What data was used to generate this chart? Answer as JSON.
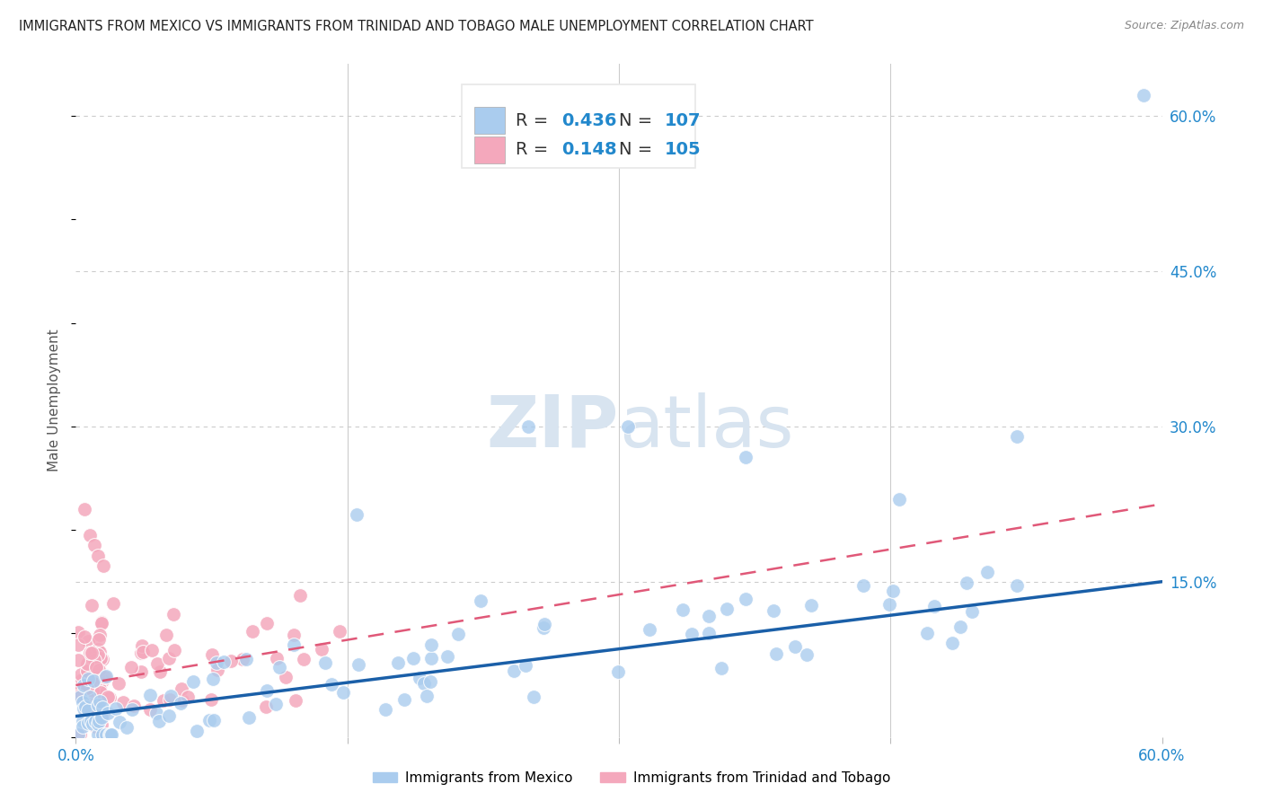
{
  "title": "IMMIGRANTS FROM MEXICO VS IMMIGRANTS FROM TRINIDAD AND TOBAGO MALE UNEMPLOYMENT CORRELATION CHART",
  "source": "Source: ZipAtlas.com",
  "ylabel": "Male Unemployment",
  "xlim": [
    0.0,
    0.6
  ],
  "ylim": [
    0.0,
    0.65
  ],
  "ytick_labels": [
    "60.0%",
    "45.0%",
    "30.0%",
    "15.0%"
  ],
  "ytick_positions": [
    0.6,
    0.45,
    0.3,
    0.15
  ],
  "mexico_R": 0.436,
  "mexico_N": 107,
  "tt_R": 0.148,
  "tt_N": 105,
  "mexico_color": "#aaccee",
  "tt_color": "#f4a8bc",
  "mexico_line_color": "#1a5fa8",
  "tt_line_color": "#e05878",
  "text_color_blue": "#2288cc",
  "text_color_dark": "#333333",
  "watermark_color": "#d8e4f0",
  "background_color": "#ffffff",
  "grid_color": "#cccccc",
  "legend_box_color": "#e8e8e8"
}
